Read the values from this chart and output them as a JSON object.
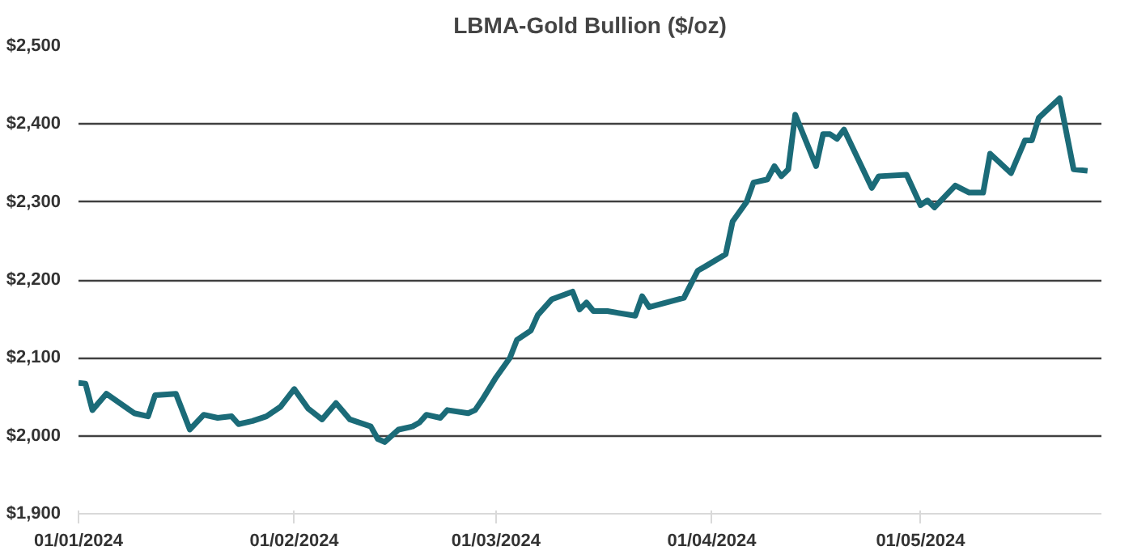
{
  "chart_data": {
    "type": "line",
    "title": "LBMA-Gold Bullion ($/oz)",
    "x": [
      "2024-01-01",
      "2024-01-02",
      "2024-01-03",
      "2024-01-05",
      "2024-01-09",
      "2024-01-11",
      "2024-01-12",
      "2024-01-15",
      "2024-01-17",
      "2024-01-19",
      "2024-01-21",
      "2024-01-23",
      "2024-01-24",
      "2024-01-26",
      "2024-01-28",
      "2024-01-30",
      "2024-02-01",
      "2024-02-03",
      "2024-02-05",
      "2024-02-07",
      "2024-02-09",
      "2024-02-12",
      "2024-02-13",
      "2024-02-14",
      "2024-02-16",
      "2024-02-18",
      "2024-02-19",
      "2024-02-20",
      "2024-02-22",
      "2024-02-23",
      "2024-02-26",
      "2024-02-27",
      "2024-02-28",
      "2024-03-01",
      "2024-03-03",
      "2024-03-04",
      "2024-03-06",
      "2024-03-07",
      "2024-03-09",
      "2024-03-12",
      "2024-03-13",
      "2024-03-14",
      "2024-03-15",
      "2024-03-17",
      "2024-03-21",
      "2024-03-22",
      "2024-03-23",
      "2024-03-28",
      "2024-03-30",
      "2024-03-31",
      "2024-04-03",
      "2024-04-04",
      "2024-04-06",
      "2024-04-07",
      "2024-04-09",
      "2024-04-10",
      "2024-04-11",
      "2024-04-12",
      "2024-04-13",
      "2024-04-16",
      "2024-04-17",
      "2024-04-18",
      "2024-04-19",
      "2024-04-20",
      "2024-04-24",
      "2024-04-25",
      "2024-04-29",
      "2024-05-01",
      "2024-05-02",
      "2024-05-03",
      "2024-05-06",
      "2024-05-08",
      "2024-05-10",
      "2024-05-11",
      "2024-05-14",
      "2024-05-16",
      "2024-05-17",
      "2024-05-18",
      "2024-05-21",
      "2024-05-23",
      "2024-05-25"
    ],
    "series": [
      {
        "color": "#1b6b78",
        "values": [
          2068,
          2067,
          2033,
          2054,
          2029,
          2025,
          2052,
          2054,
          2008,
          2027,
          2023,
          2025,
          2015,
          2019,
          2025,
          2037,
          2060,
          2035,
          2021,
          2042,
          2021,
          2012,
          1996,
          1992,
          2008,
          2012,
          2017,
          2027,
          2023,
          2033,
          2029,
          2033,
          2046,
          2075,
          2100,
          2123,
          2135,
          2155,
          2175,
          2185,
          2162,
          2171,
          2160,
          2160,
          2154,
          2179,
          2165,
          2177,
          2212,
          2217,
          2233,
          2275,
          2300,
          2325,
          2329,
          2346,
          2333,
          2342,
          2412,
          2346,
          2387,
          2387,
          2381,
          2393,
          2318,
          2333,
          2335,
          2296,
          2302,
          2293,
          2321,
          2312,
          2312,
          2362,
          2337,
          2379,
          2379,
          2408,
          2433,
          2342,
          2340
        ]
      }
    ],
    "xlim": [
      "2024-01-01",
      "2024-05-27"
    ],
    "xticks": [
      {
        "value": "2024-01-01",
        "label": "01/01/2024"
      },
      {
        "value": "2024-02-01",
        "label": "01/02/2024"
      },
      {
        "value": "2024-03-01",
        "label": "01/03/2024"
      },
      {
        "value": "2024-04-01",
        "label": "01/04/2024"
      },
      {
        "value": "2024-05-01",
        "label": "01/05/2024"
      }
    ],
    "ylim": [
      1900,
      2500
    ],
    "yticks": [
      {
        "value": 1900,
        "label": "$1,900"
      },
      {
        "value": 2000,
        "label": "$2,000"
      },
      {
        "value": 2100,
        "label": "$2,100"
      },
      {
        "value": 2200,
        "label": "$2,200"
      },
      {
        "value": 2300,
        "label": "$2,300"
      },
      {
        "value": 2400,
        "label": "$2,400"
      },
      {
        "value": 2500,
        "label": "$2,500"
      }
    ],
    "grid": "y",
    "marker": "none",
    "line_style": "solid"
  }
}
